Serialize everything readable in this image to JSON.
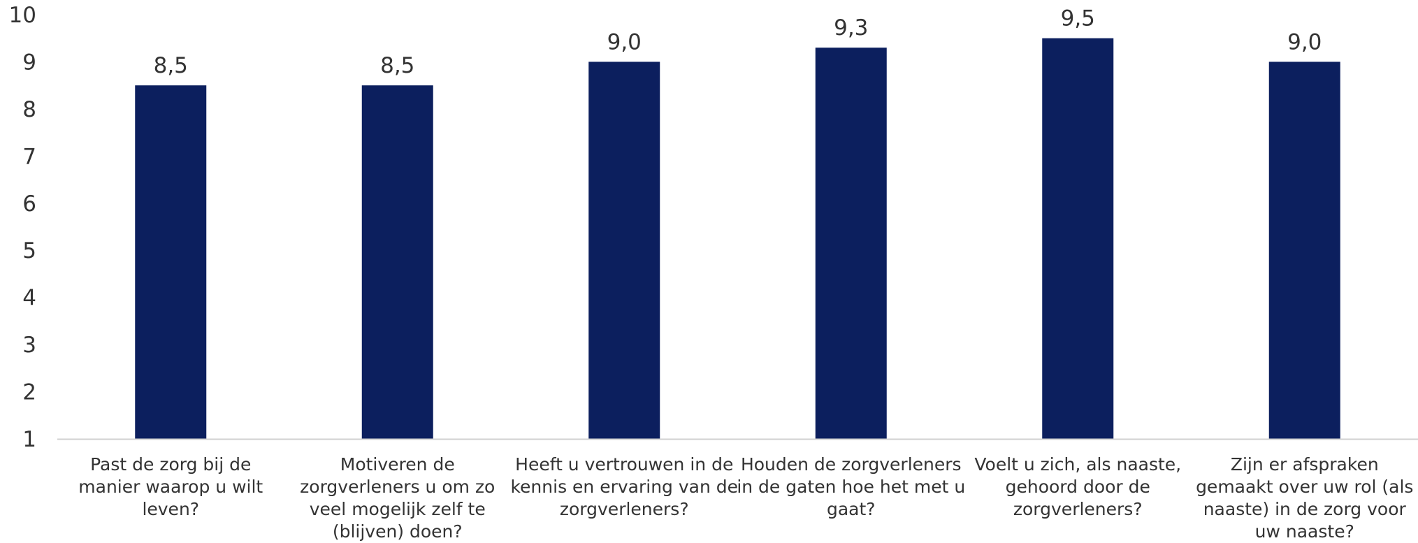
{
  "chart_data": {
    "type": "bar",
    "categories": [
      [
        "Past de zorg bij de",
        "manier waarop u wilt",
        "leven?"
      ],
      [
        "Motiveren de",
        "zorgverleners u om zo",
        "veel mogelijk zelf te",
        "(blijven) doen?"
      ],
      [
        "Heeft u vertrouwen in de",
        "kennis en ervaring van de",
        "zorgverleners?"
      ],
      [
        "Houden de zorgverleners",
        "in de gaten hoe het met u",
        "gaat?"
      ],
      [
        "Voelt u zich, als naaste,",
        "gehoord door de",
        "zorgverleners?"
      ],
      [
        "Zijn er afspraken",
        "gemaakt over uw rol (als",
        "naaste) in de zorg voor",
        "uw naaste?"
      ]
    ],
    "values": [
      8.5,
      8.5,
      9.0,
      9.3,
      9.5,
      9.0
    ],
    "value_labels": [
      "8,5",
      "8,5",
      "9,0",
      "9,3",
      "9,5",
      "9,0"
    ],
    "yticks": [
      "1",
      "2",
      "3",
      "4",
      "5",
      "6",
      "7",
      "8",
      "9",
      "10"
    ],
    "ylim": [
      1,
      10
    ],
    "grid": false,
    "colors": {
      "bar": "#0c1f5e",
      "axis": "#d0d0d0",
      "text": "#333333"
    }
  }
}
